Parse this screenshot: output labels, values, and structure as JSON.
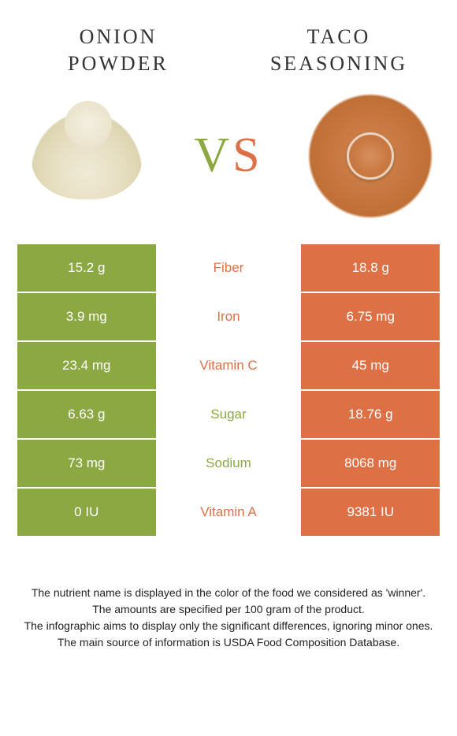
{
  "left": {
    "title_line1": "ONION",
    "title_line2": "POWDER"
  },
  "right": {
    "title_line1": "TACO",
    "title_line2": "SEASONING"
  },
  "vs": {
    "v": "V",
    "s": "S"
  },
  "colors": {
    "left": "#8ba843",
    "right": "#de7046",
    "background": "#ffffff"
  },
  "rows": [
    {
      "left": "15.2 g",
      "label": "Fiber",
      "right": "18.8 g",
      "winner": "right"
    },
    {
      "left": "3.9 mg",
      "label": "Iron",
      "right": "6.75 mg",
      "winner": "right"
    },
    {
      "left": "23.4 mg",
      "label": "Vitamin C",
      "right": "45 mg",
      "winner": "right"
    },
    {
      "left": "6.63 g",
      "label": "Sugar",
      "right": "18.76 g",
      "winner": "left"
    },
    {
      "left": "73 mg",
      "label": "Sodium",
      "right": "8068 mg",
      "winner": "left"
    },
    {
      "left": "0 IU",
      "label": "Vitamin A",
      "right": "9381 IU",
      "winner": "right"
    }
  ],
  "footer": {
    "line1": "The nutrient name is displayed in the color of the food we considered as 'winner'.",
    "line2": "The amounts are specified per 100 gram of the product.",
    "line3": "The infographic aims to display only the significant differences, ignoring minor ones.",
    "line4": "The main source of information is USDA Food Composition Database."
  }
}
